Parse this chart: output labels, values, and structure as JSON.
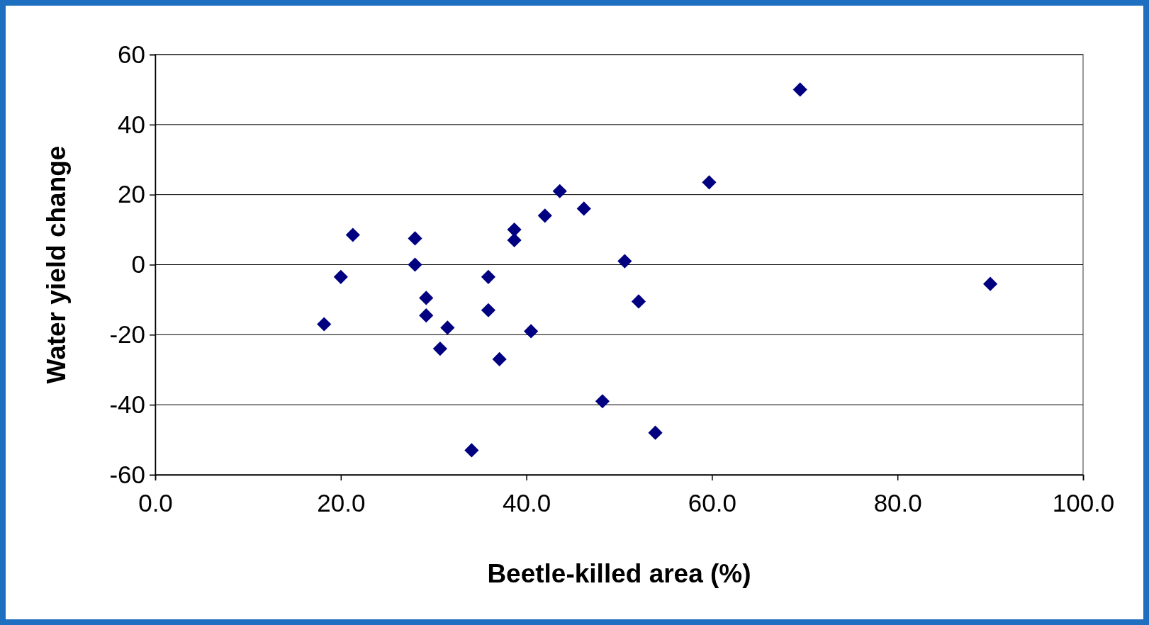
{
  "chart_data": {
    "type": "scatter",
    "xlabel": "Beetle-killed area (%)",
    "ylabel": "Water yield change",
    "x": [
      18.2,
      20.0,
      21.3,
      28.0,
      28.0,
      29.2,
      29.2,
      30.7,
      31.5,
      34.1,
      35.9,
      35.9,
      37.1,
      38.7,
      38.7,
      40.5,
      42.0,
      43.6,
      46.2,
      48.2,
      50.6,
      52.1,
      53.9,
      59.7,
      69.5,
      90.0
    ],
    "values": [
      -17,
      -3.5,
      8.5,
      7.5,
      0,
      -9.5,
      -14.5,
      -24,
      -18,
      -53,
      -3.5,
      -13,
      -27,
      10,
      7,
      -19,
      14,
      21,
      16,
      -39,
      1,
      -10.5,
      -48,
      23.5,
      50,
      -5.5
    ],
    "color": "#000080",
    "marker": "diamond",
    "xlim": [
      0,
      100
    ],
    "xticks": [
      {
        "value": 0,
        "label": "0.0"
      },
      {
        "value": 20,
        "label": "20.0"
      },
      {
        "value": 40,
        "label": "40.0"
      },
      {
        "value": 60,
        "label": "60.0"
      },
      {
        "value": 80,
        "label": "80.0"
      },
      {
        "value": 100,
        "label": "100.0"
      }
    ],
    "ylim": [
      -60,
      60
    ],
    "yticks": [
      -60,
      -40,
      -20,
      0,
      20,
      40,
      60
    ],
    "grid": "y"
  }
}
